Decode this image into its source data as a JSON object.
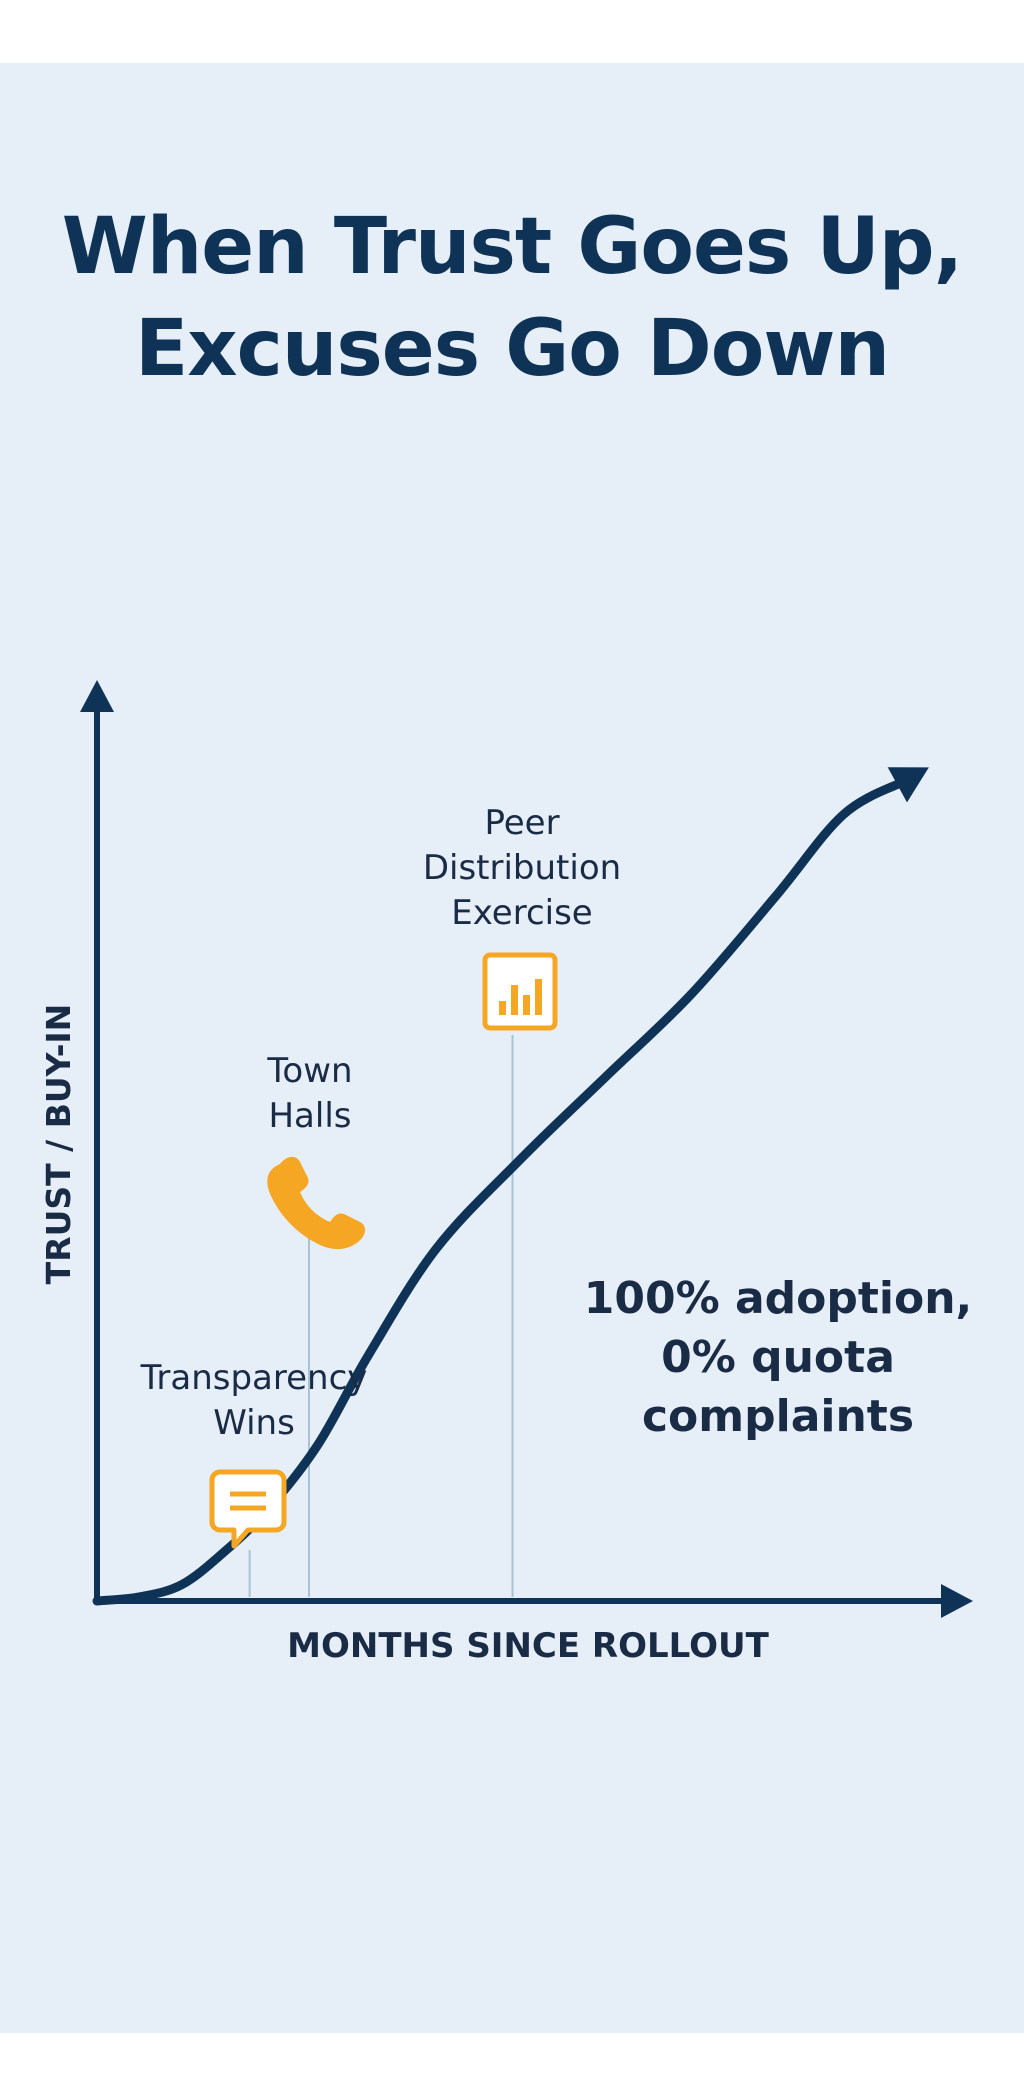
{
  "chart_data": {
    "type": "line",
    "title": "When Trust Goes Up, Excuses Go Down",
    "title_lines": [
      "When Trust Goes Up,",
      "Excuses Go Down"
    ],
    "xlabel": "MONTHS SINCE ROLLOUT",
    "ylabel": "TRUST / BUY-IN",
    "grid": false,
    "series": [
      {
        "x": [
          0,
          0.05,
          0.1,
          0.15,
          0.2,
          0.26,
          0.32,
          0.4,
          0.5,
          0.6,
          0.7,
          0.8,
          0.88,
          0.95
        ],
        "values": [
          0,
          0.005,
          0.02,
          0.06,
          0.11,
          0.19,
          0.3,
          0.43,
          0.54,
          0.64,
          0.74,
          0.86,
          0.96,
          1.0
        ]
      }
    ],
    "xlim": [
      0,
      1
    ],
    "ylim": [
      0,
      1.1
    ],
    "annotations": [
      {
        "lines": [
          "Transparency",
          "Wins"
        ],
        "icon": "chat-bubble-icon",
        "x": 0.18
      },
      {
        "lines": [
          "Town",
          "Halls"
        ],
        "icon": "phone-icon",
        "x": 0.25
      },
      {
        "lines": [
          "Peer",
          "Distribution",
          "Exercise"
        ],
        "icon": "bar-chart-icon",
        "x": 0.49
      }
    ],
    "callout_lines": [
      "100% adoption,",
      "0% quota",
      "complaints"
    ]
  },
  "colors": {
    "navy": "#0f3357",
    "accent": "#f5a623",
    "background": "#e6eef8",
    "guide": "#a9c3d6"
  }
}
